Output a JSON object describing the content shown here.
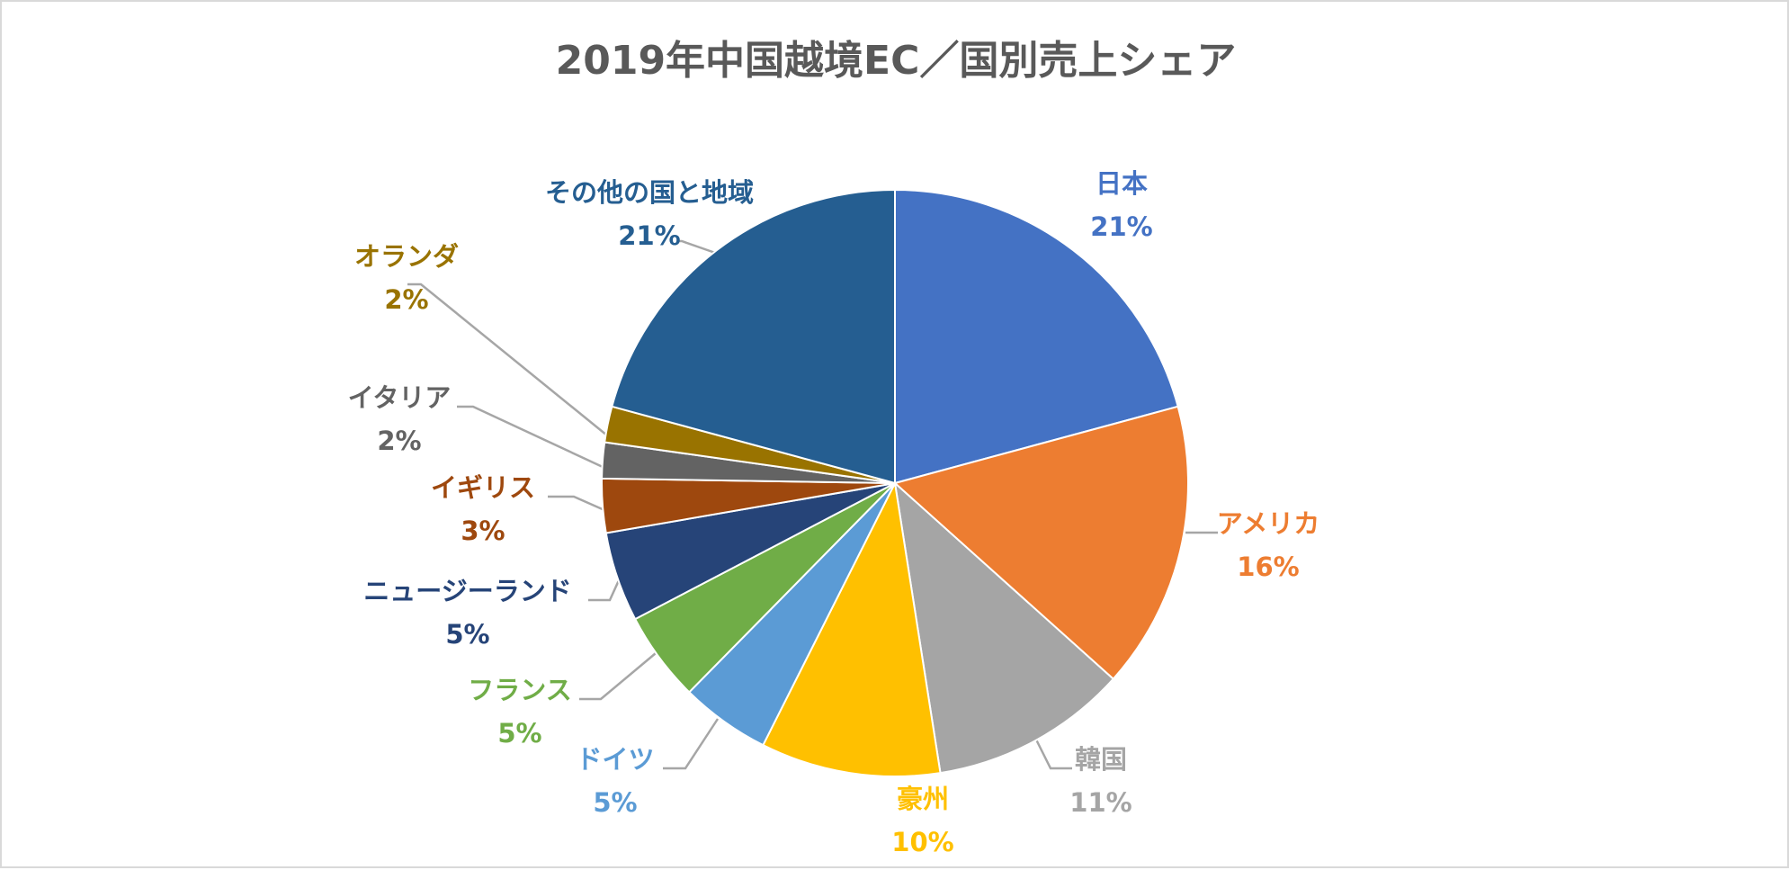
{
  "chart_data": {
    "type": "pie",
    "title": "2019年中国越境EC／国別売上シェア",
    "title_color": "#595959",
    "label_format": "{name}\n{percent}",
    "leader_line_color": "#a6a6a6",
    "slices": [
      {
        "name": "日本",
        "value": 21,
        "percent_label": "21%",
        "color": "#4472c4"
      },
      {
        "name": "アメリカ",
        "value": 16,
        "percent_label": "16%",
        "color": "#ed7d31"
      },
      {
        "name": "韓国",
        "value": 11,
        "percent_label": "11%",
        "color": "#a5a5a5"
      },
      {
        "name": "豪州",
        "value": 10,
        "percent_label": "10%",
        "color": "#ffc000"
      },
      {
        "name": "ドイツ",
        "value": 5,
        "percent_label": "5%",
        "color": "#5b9bd5"
      },
      {
        "name": "フランス",
        "value": 5,
        "percent_label": "5%",
        "color": "#70ad47"
      },
      {
        "name": "ニュージーランド",
        "value": 5,
        "percent_label": "5%",
        "color": "#264478"
      },
      {
        "name": "イギリス",
        "value": 3,
        "percent_label": "3%",
        "color": "#9e480e"
      },
      {
        "name": "イタリア",
        "value": 2,
        "percent_label": "2%",
        "color": "#636363"
      },
      {
        "name": "オランダ",
        "value": 2,
        "percent_label": "2%",
        "color": "#997300"
      },
      {
        "name": "その他の国と地域",
        "value": 21,
        "percent_label": "21%",
        "color": "#255e91"
      }
    ]
  }
}
